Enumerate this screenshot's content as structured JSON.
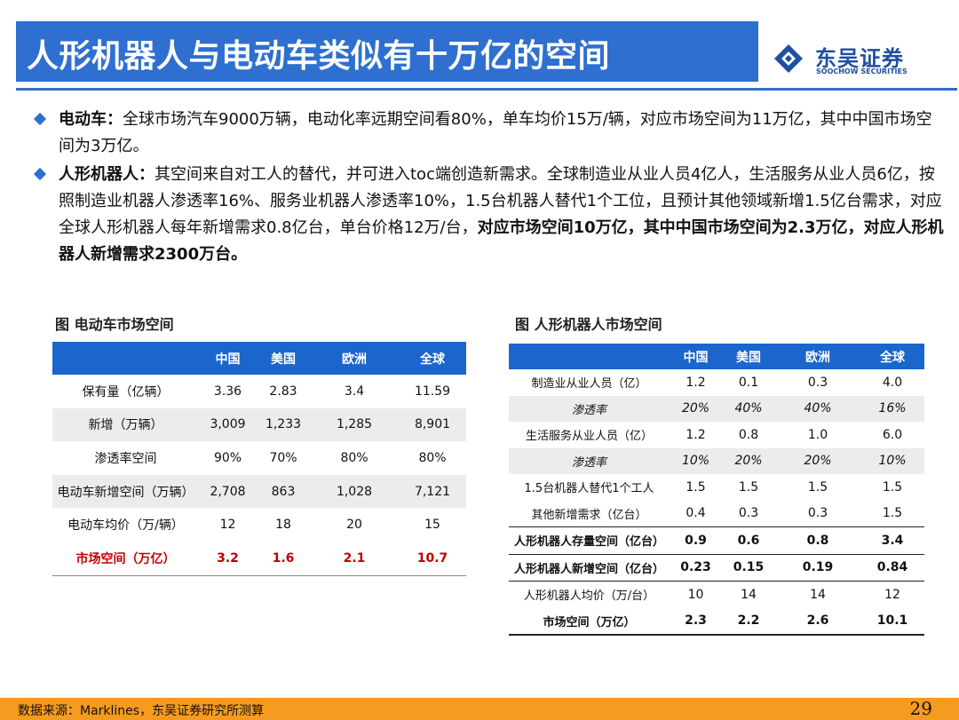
{
  "header": {
    "title": "人形机器人与电动车类似有十万亿的空间",
    "logo_cn": "东吴证券",
    "logo_en": "SOOCHOW SECURITIES"
  },
  "bullets": [
    {
      "label": "电动车：",
      "text": "全球市场汽车9000万辆，电动化率远期空间看80%，单车均价15万/辆，对应市场空间为11万亿，其中中国市场空间为3万亿。",
      "bold_tail": ""
    },
    {
      "label": "人形机器人：",
      "text": "其空间来自对工人的替代，并可进入toc端创造新需求。全球制造业从业人员4亿人，生活服务从业人员6亿，按照制造业机器人渗透率16%、服务业机器人渗透率10%，1.5台机器人替代1个工位，且预计其他领域新增1.5亿台需求，对应全球人形机器人每年新增需求0.8亿台，单台价格12万/台，",
      "bold_tail": "对应市场空间10万亿，其中中国市场空间为2.3万亿，对应人形机器人新增需求2300万台。"
    }
  ],
  "ev_table": {
    "caption": "图 电动车市场空间",
    "headers": [
      "",
      "中国",
      "美国",
      "欧洲",
      "全球"
    ],
    "rows": [
      [
        "保有量（亿辆）",
        "3.36",
        "2.83",
        "3.4",
        "11.59"
      ],
      [
        "新增（万辆）",
        "3,009",
        "1,233",
        "1,285",
        "8,901"
      ],
      [
        "渗透率空间",
        "90%",
        "70%",
        "80%",
        "80%"
      ],
      [
        "电动车新增空间（万辆）",
        "2,708",
        "863",
        "1,028",
        "7,121"
      ],
      [
        "电动车均价（万/辆）",
        "12",
        "18",
        "20",
        "15"
      ],
      [
        "市场空间（万亿）",
        "3.2",
        "1.6",
        "2.1",
        "10.7"
      ]
    ]
  },
  "robot_table": {
    "caption": "图 人形机器人市场空间",
    "headers": [
      "",
      "中国",
      "美国",
      "欧洲",
      "全球"
    ],
    "rows": [
      [
        "制造业从业人员（亿）",
        "1.2",
        "0.1",
        "0.3",
        "4.0"
      ],
      [
        "渗透率",
        "20%",
        "40%",
        "40%",
        "16%"
      ],
      [
        "生活服务从业人员（亿）",
        "1.2",
        "0.8",
        "1.0",
        "6.0"
      ],
      [
        "渗透率",
        "10%",
        "20%",
        "20%",
        "10%"
      ],
      [
        "1.5台机器人替代1个工人",
        "1.5",
        "1.5",
        "1.5",
        "1.5"
      ],
      [
        "其他新增需求（亿台）",
        "0.4",
        "0.3",
        "0.3",
        "1.5"
      ],
      [
        "人形机器人存量空间（亿台）",
        "0.9",
        "0.6",
        "0.8",
        "3.4"
      ],
      [
        "人形机器人新增空间（亿台）",
        "0.23",
        "0.15",
        "0.19",
        "0.84"
      ],
      [
        "人形机器人均价（万/台）",
        "10",
        "14",
        "14",
        "12"
      ],
      [
        "市场空间（万亿）",
        "2.3",
        "2.2",
        "2.6",
        "10.1"
      ]
    ]
  },
  "footer": {
    "source": "数据来源：Marklines，东吴证券研究所测算",
    "page_number": "29"
  }
}
